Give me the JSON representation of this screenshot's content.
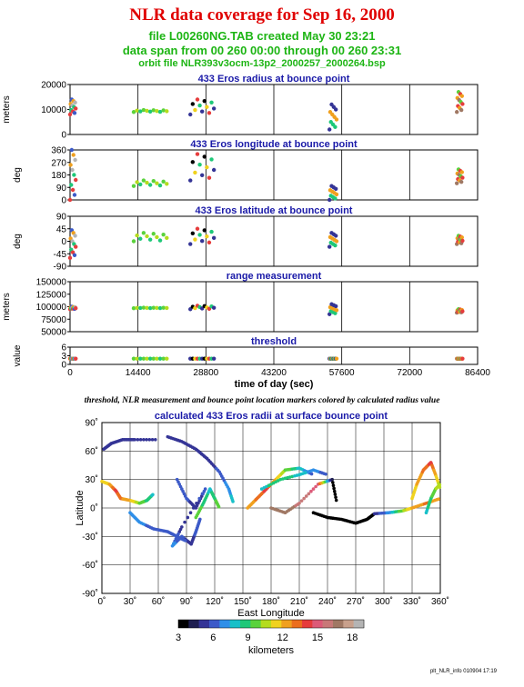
{
  "header": {
    "title": "NLR data coverage for Sep 16, 2000",
    "subtitle1": "file L00260NG.TAB created May 30 23:21",
    "subtitle2": "data span from 00 260 00:00 through 00 260 23:31",
    "subtitle3": "orbit file NLR393v3ocm-13p2_2000257_2000264.bsp"
  },
  "caption": "threshold, NLR measurement and bounce point location markers colored by calculated radius value",
  "footer": "plt_NLR_info 010904 17:19",
  "chart_data": [
    {
      "type": "scatter",
      "title": "433 Eros radius at bounce point",
      "ylabel": "meters",
      "xlim": [
        0,
        86400
      ],
      "ylim": [
        0,
        20000
      ],
      "yticks": [
        0,
        10000,
        20000
      ],
      "xgrid": [
        0,
        14400,
        28800,
        43200,
        57600,
        72000,
        86400
      ],
      "segments": [
        {
          "x": [
            0,
            1200
          ],
          "y": [
            8000,
            14000
          ]
        },
        {
          "x": [
            13500,
            20500
          ],
          "y": [
            9000,
            9800
          ]
        },
        {
          "x": [
            25500,
            30500
          ],
          "y": [
            8000,
            14000
          ]
        },
        {
          "x": [
            55000,
            56500
          ],
          "y": [
            2000,
            12000
          ]
        },
        {
          "x": [
            82000,
            83200
          ],
          "y": [
            9000,
            17000
          ]
        }
      ]
    },
    {
      "type": "scatter",
      "title": "433 Eros longitude at bounce point",
      "ylabel": "deg",
      "xlim": [
        0,
        86400
      ],
      "ylim": [
        0,
        360
      ],
      "yticks": [
        0,
        90,
        180,
        270,
        360
      ],
      "xgrid": [
        0,
        14400,
        28800,
        43200,
        57600,
        72000,
        86400
      ],
      "segments": [
        {
          "x": [
            0,
            1200
          ],
          "y": [
            0,
            360
          ]
        },
        {
          "x": [
            13500,
            20500
          ],
          "y": [
            100,
            140
          ]
        },
        {
          "x": [
            25500,
            30500
          ],
          "y": [
            140,
            330
          ]
        },
        {
          "x": [
            55000,
            56500
          ],
          "y": [
            0,
            100
          ]
        },
        {
          "x": [
            82000,
            83200
          ],
          "y": [
            120,
            220
          ]
        }
      ]
    },
    {
      "type": "scatter",
      "title": "433 Eros latitude at bounce point",
      "ylabel": "deg",
      "xlim": [
        0,
        86400
      ],
      "ylim": [
        -90,
        90
      ],
      "yticks": [
        -90,
        -45,
        0,
        45,
        90
      ],
      "xgrid": [
        0,
        14400,
        28800,
        43200,
        57600,
        72000,
        86400
      ],
      "segments": [
        {
          "x": [
            0,
            1200
          ],
          "y": [
            -60,
            40
          ]
        },
        {
          "x": [
            13500,
            20500
          ],
          "y": [
            0,
            30
          ]
        },
        {
          "x": [
            25500,
            30500
          ],
          "y": [
            -10,
            45
          ]
        },
        {
          "x": [
            55000,
            56500
          ],
          "y": [
            -20,
            30
          ]
        },
        {
          "x": [
            82000,
            83200
          ],
          "y": [
            -10,
            20
          ]
        }
      ]
    },
    {
      "type": "scatter",
      "title": "range measurement",
      "ylabel": "meters",
      "xlim": [
        0,
        86400
      ],
      "ylim": [
        50000,
        150000
      ],
      "yticks": [
        50000,
        75000,
        100000,
        125000,
        150000
      ],
      "xgrid": [
        0,
        14400,
        28800,
        43200,
        57600,
        72000,
        86400
      ],
      "segments": [
        {
          "x": [
            0,
            1200
          ],
          "y": [
            95000,
            100000
          ]
        },
        {
          "x": [
            13500,
            20500
          ],
          "y": [
            97000,
            98000
          ]
        },
        {
          "x": [
            25500,
            30500
          ],
          "y": [
            95000,
            102000
          ]
        },
        {
          "x": [
            55000,
            56500
          ],
          "y": [
            85000,
            105000
          ]
        },
        {
          "x": [
            82000,
            83200
          ],
          "y": [
            88000,
            95000
          ]
        }
      ]
    },
    {
      "type": "scatter",
      "title": "threshold",
      "ylabel": "value",
      "xlabel": "time of day (sec)",
      "xlim": [
        0,
        86400
      ],
      "ylim": [
        0,
        6
      ],
      "yticks": [
        0,
        3,
        6
      ],
      "xticks": [
        0,
        14400,
        28800,
        43200,
        57600,
        72000,
        86400
      ],
      "xgrid": [
        0,
        14400,
        28800,
        43200,
        57600,
        72000,
        86400
      ],
      "segments": [
        {
          "x": [
            0,
            1200
          ],
          "y": [
            2,
            2
          ]
        },
        {
          "x": [
            13500,
            20500
          ],
          "y": [
            2,
            2
          ]
        },
        {
          "x": [
            25500,
            30500
          ],
          "y": [
            2,
            2
          ]
        },
        {
          "x": [
            55000,
            56500
          ],
          "y": [
            2,
            2
          ]
        },
        {
          "x": [
            82000,
            83200
          ],
          "y": [
            2,
            2
          ]
        }
      ]
    },
    {
      "type": "scatter",
      "title": "calculated 433 Eros radii at surface bounce point",
      "xlabel": "East Longitude",
      "ylabel": "Latitude",
      "xlim": [
        0,
        360
      ],
      "ylim": [
        -90,
        90
      ],
      "xticks": [
        "0˚",
        "30˚",
        "60˚",
        "90˚",
        "120˚",
        "150˚",
        "180˚",
        "210˚",
        "240˚",
        "270˚",
        "300˚",
        "330˚",
        "360˚"
      ],
      "yticks": [
        "-90˚",
        "-60˚",
        "-30˚",
        "0˚",
        "30˚",
        "60˚",
        "90˚"
      ],
      "colorbar": {
        "label": "kilometers",
        "ticks": [
          3,
          6,
          9,
          12,
          15,
          18
        ],
        "range": [
          3,
          19
        ],
        "colors": [
          "#000000",
          "#1e1e50",
          "#343496",
          "#3c5ac8",
          "#2f8fe8",
          "#18c0c8",
          "#1ec878",
          "#5ad23c",
          "#b4dc1e",
          "#f0d21e",
          "#f0a01e",
          "#eb6e1e",
          "#e63c3c",
          "#dc5a78",
          "#c87878",
          "#a07864",
          "#c8a08c",
          "#b4b4b4"
        ]
      },
      "tracks": [
        {
          "lon": [
            0,
            8,
            15,
            20,
            30,
            40,
            48,
            55
          ],
          "lat": [
            28,
            25,
            18,
            10,
            8,
            5,
            8,
            15
          ],
          "r": [
            11,
            12,
            14,
            13,
            12,
            10,
            9,
            8
          ]
        },
        {
          "lon": [
            2,
            10,
            22,
            35,
            60
          ],
          "lat": [
            62,
            68,
            72,
            72,
            72
          ],
          "r": [
            5,
            5,
            5,
            5,
            5
          ]
        },
        {
          "lon": [
            70,
            85,
            100,
            112,
            125,
            135,
            140
          ],
          "lat": [
            75,
            70,
            62,
            52,
            38,
            20,
            5
          ],
          "r": [
            5,
            5,
            5,
            5,
            6,
            7,
            8
          ]
        },
        {
          "lon": [
            80,
            90,
            100,
            110,
            85,
            75,
            85,
            95,
            100,
            105
          ],
          "lat": [
            30,
            10,
            0,
            20,
            -20,
            -40,
            -30,
            -38,
            -25,
            -10
          ],
          "r": [
            6,
            6,
            5,
            6,
            5,
            7,
            6,
            5,
            6,
            6
          ]
        },
        {
          "lon": [
            30,
            40,
            55,
            70,
            80,
            90
          ],
          "lat": [
            -5,
            -15,
            -22,
            -25,
            -30,
            -35
          ],
          "r": [
            7,
            7,
            6,
            6,
            6,
            6
          ]
        },
        {
          "lon": [
            100,
            108,
            115,
            120,
            125
          ],
          "lat": [
            -10,
            5,
            20,
            10,
            0
          ],
          "r": [
            10,
            9,
            8,
            9,
            10
          ]
        },
        {
          "lon": [
            155,
            165,
            175,
            185,
            195,
            210,
            225
          ],
          "lat": [
            0,
            10,
            20,
            30,
            40,
            42,
            35
          ],
          "r": [
            12,
            13,
            14,
            12,
            10,
            8,
            6
          ]
        },
        {
          "lon": [
            170,
            190,
            210,
            225,
            240
          ],
          "lat": [
            20,
            30,
            35,
            40,
            35
          ],
          "r": [
            8,
            9,
            8,
            7,
            6
          ]
        },
        {
          "lon": [
            180,
            195,
            210,
            230,
            245,
            250
          ],
          "lat": [
            0,
            -5,
            5,
            25,
            30,
            5
          ],
          "r": [
            17,
            17,
            16,
            15,
            4,
            3
          ]
        },
        {
          "lon": [
            225,
            240,
            255,
            270,
            282,
            290
          ],
          "lat": [
            -5,
            -10,
            -12,
            -16,
            -12,
            -6
          ],
          "r": [
            3,
            3,
            3,
            3,
            3,
            3
          ]
        },
        {
          "lon": [
            290,
            305,
            320,
            330,
            345,
            360
          ],
          "lat": [
            -6,
            -5,
            -3,
            0,
            5,
            10
          ],
          "r": [
            5,
            7,
            10,
            12,
            13,
            12
          ]
        },
        {
          "lon": [
            330,
            335,
            342,
            350,
            355,
            360
          ],
          "lat": [
            10,
            25,
            40,
            48,
            35,
            20
          ],
          "r": [
            11,
            12,
            13,
            14,
            12,
            10
          ]
        },
        {
          "lon": [
            345,
            350,
            355,
            360
          ],
          "lat": [
            -5,
            10,
            20,
            25
          ],
          "r": [
            8,
            9,
            10,
            11
          ]
        }
      ]
    }
  ]
}
